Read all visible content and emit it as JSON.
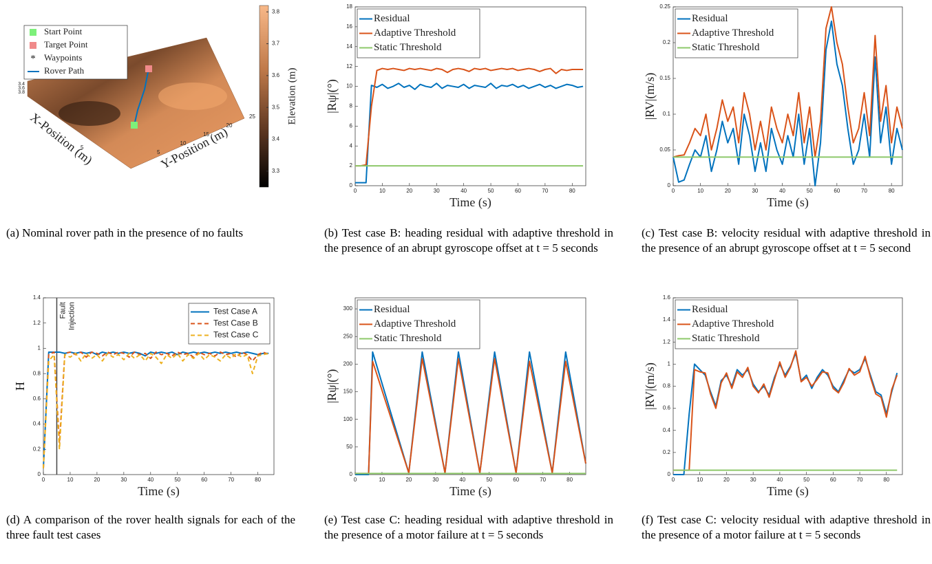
{
  "chart_data": [
    {
      "type": "surface",
      "legend": "upper left",
      "series": [
        {
          "name": "Start Point",
          "color": "#7df07a"
        },
        {
          "name": "Target Point",
          "color": "#f08a8a"
        },
        {
          "name": "Waypoints",
          "color": "#000000"
        },
        {
          "name": "Rover Path",
          "color": "#0072BD"
        }
      ],
      "xlabel": "X-Position (m)",
      "ylabel": "Y-Position (m)",
      "xticks": [
        5
      ],
      "yticks": [
        5,
        10,
        15,
        20,
        25
      ],
      "zticks": [
        3.4,
        3.6,
        3.8
      ],
      "colorbar_label": "Elevation (m)",
      "clim": [
        3.25,
        3.82
      ],
      "cticks": [
        3.3,
        3.4,
        3.5,
        3.6,
        3.7,
        3.8
      ],
      "caption": "(a) Nominal rover path in the presence of no faults"
    },
    {
      "type": "line",
      "legend": "upper left",
      "xlabel": "Time (s)",
      "ylabel": "|Rψ|(°)",
      "xlim": [
        0,
        85
      ],
      "xticks": [
        0,
        10,
        20,
        30,
        40,
        50,
        60,
        70,
        80
      ],
      "ylim": [
        0,
        18
      ],
      "yticks": [
        0,
        2,
        4,
        6,
        8,
        10,
        12,
        14,
        16,
        18
      ],
      "x": [
        0,
        2,
        4,
        6,
        8,
        10,
        12,
        14,
        16,
        18,
        20,
        22,
        24,
        26,
        28,
        30,
        32,
        34,
        36,
        38,
        40,
        42,
        44,
        46,
        48,
        50,
        52,
        54,
        56,
        58,
        60,
        62,
        64,
        66,
        68,
        70,
        72,
        74,
        76,
        78,
        80,
        82,
        84
      ],
      "series": [
        {
          "name": "Residual",
          "color": "#0072BD",
          "values": [
            0.3,
            0.3,
            0.3,
            10.1,
            9.9,
            10.2,
            9.8,
            10.0,
            10.3,
            9.9,
            10.1,
            9.7,
            10.2,
            10.0,
            9.9,
            10.3,
            9.8,
            10.1,
            10.0,
            9.9,
            10.2,
            9.8,
            10.1,
            10.0,
            9.9,
            10.3,
            9.8,
            10.1,
            10.0,
            10.2,
            9.9,
            10.1,
            9.8,
            10.0,
            10.2,
            9.9,
            10.1,
            9.8,
            10.0,
            10.2,
            10.1,
            9.9,
            10.0
          ]
        },
        {
          "name": "Adaptive Threshold",
          "color": "#D95319",
          "values": [
            2,
            2,
            2.1,
            8.0,
            11.6,
            11.8,
            11.7,
            11.8,
            11.7,
            11.6,
            11.8,
            11.7,
            11.8,
            11.7,
            11.6,
            11.8,
            11.7,
            11.4,
            11.7,
            11.8,
            11.7,
            11.5,
            11.8,
            11.7,
            11.8,
            11.6,
            11.7,
            11.8,
            11.7,
            11.8,
            11.6,
            11.7,
            11.8,
            11.7,
            11.5,
            11.7,
            11.8,
            11.3,
            11.7,
            11.6,
            11.7,
            11.7,
            11.7
          ]
        },
        {
          "name": "Static Threshold",
          "color": "#8DC86A",
          "values": [
            2,
            2,
            2,
            2,
            2,
            2,
            2,
            2,
            2,
            2,
            2,
            2,
            2,
            2,
            2,
            2,
            2,
            2,
            2,
            2,
            2,
            2,
            2,
            2,
            2,
            2,
            2,
            2,
            2,
            2,
            2,
            2,
            2,
            2,
            2,
            2,
            2,
            2,
            2,
            2,
            2,
            2,
            2
          ]
        }
      ],
      "caption": "(b) Test case B: heading residual with adaptive threshold in the presence of an abrupt gyroscope offset at t = 5 seconds"
    },
    {
      "type": "line",
      "legend": "upper left",
      "xlabel": "Time (s)",
      "ylabel": "|RV|(m/s)",
      "xlim": [
        0,
        84
      ],
      "xticks": [
        0,
        10,
        20,
        30,
        40,
        50,
        60,
        70,
        80
      ],
      "ylim": [
        0,
        0.25
      ],
      "yticks": [
        0,
        0.05,
        0.1,
        0.15,
        0.2,
        0.25
      ],
      "x": [
        0,
        2,
        4,
        6,
        8,
        10,
        12,
        14,
        16,
        18,
        20,
        22,
        24,
        26,
        28,
        30,
        32,
        34,
        36,
        38,
        40,
        42,
        44,
        46,
        48,
        50,
        52,
        54,
        56,
        58,
        60,
        62,
        64,
        66,
        68,
        70,
        72,
        74,
        76,
        78,
        80,
        82,
        84
      ],
      "series": [
        {
          "name": "Residual",
          "color": "#0072BD",
          "values": [
            0.04,
            0.005,
            0.008,
            0.03,
            0.05,
            0.04,
            0.07,
            0.02,
            0.05,
            0.09,
            0.06,
            0.08,
            0.03,
            0.1,
            0.07,
            0.02,
            0.06,
            0.02,
            0.08,
            0.05,
            0.03,
            0.07,
            0.04,
            0.1,
            0.03,
            0.08,
            0.0,
            0.06,
            0.19,
            0.23,
            0.17,
            0.14,
            0.08,
            0.03,
            0.05,
            0.1,
            0.04,
            0.18,
            0.06,
            0.11,
            0.03,
            0.08,
            0.05
          ]
        },
        {
          "name": "Adaptive Threshold",
          "color": "#D95319",
          "values": [
            0.04,
            0.042,
            0.043,
            0.06,
            0.08,
            0.07,
            0.1,
            0.05,
            0.08,
            0.12,
            0.09,
            0.11,
            0.06,
            0.13,
            0.1,
            0.05,
            0.09,
            0.05,
            0.11,
            0.08,
            0.06,
            0.1,
            0.07,
            0.13,
            0.06,
            0.11,
            0.04,
            0.09,
            0.22,
            0.25,
            0.2,
            0.17,
            0.11,
            0.06,
            0.08,
            0.13,
            0.07,
            0.21,
            0.09,
            0.14,
            0.06,
            0.11,
            0.08
          ]
        },
        {
          "name": "Static Threshold",
          "color": "#8DC86A",
          "values": [
            0.04,
            0.04,
            0.04,
            0.04,
            0.04,
            0.04,
            0.04,
            0.04,
            0.04,
            0.04,
            0.04,
            0.04,
            0.04,
            0.04,
            0.04,
            0.04,
            0.04,
            0.04,
            0.04,
            0.04,
            0.04,
            0.04,
            0.04,
            0.04,
            0.04,
            0.04,
            0.04,
            0.04,
            0.04,
            0.04,
            0.04,
            0.04,
            0.04,
            0.04,
            0.04,
            0.04,
            0.04,
            0.04,
            0.04,
            0.04,
            0.04,
            0.04,
            0.04
          ]
        }
      ],
      "caption": "(c) Test case B: velocity residual with adaptive threshold in the presence of an abrupt gyroscope offset at t = 5 second"
    },
    {
      "type": "line",
      "legend": "upper right",
      "xlabel": "Time (s)",
      "ylabel": "H",
      "xlim": [
        0,
        86
      ],
      "xticks": [
        0,
        10,
        20,
        30,
        40,
        50,
        60,
        70,
        80
      ],
      "ylim": [
        0,
        1.4
      ],
      "yticks": [
        0,
        0.2,
        0.4,
        0.6,
        0.8,
        1,
        1.2,
        1.4
      ],
      "annotation": {
        "x": 5,
        "text": [
          "Fault",
          "Injection"
        ]
      },
      "x": [
        0,
        2,
        4,
        6,
        8,
        10,
        12,
        14,
        16,
        18,
        20,
        22,
        24,
        26,
        28,
        30,
        32,
        34,
        36,
        38,
        40,
        42,
        44,
        46,
        48,
        50,
        52,
        54,
        56,
        58,
        60,
        62,
        64,
        66,
        68,
        70,
        72,
        74,
        76,
        78,
        80,
        82,
        84
      ],
      "series": [
        {
          "name": "Test Case A",
          "color": "#0072BD",
          "linestyle": "-",
          "values": [
            0.05,
            0.97,
            0.97,
            0.97,
            0.96,
            0.97,
            0.96,
            0.97,
            0.96,
            0.97,
            0.95,
            0.97,
            0.96,
            0.97,
            0.96,
            0.97,
            0.96,
            0.97,
            0.96,
            0.94,
            0.97,
            0.96,
            0.97,
            0.96,
            0.97,
            0.95,
            0.97,
            0.96,
            0.97,
            0.96,
            0.97,
            0.96,
            0.97,
            0.96,
            0.97,
            0.96,
            0.97,
            0.96,
            0.97,
            0.96,
            0.95,
            0.96,
            0.96
          ]
        },
        {
          "name": "Test Case B",
          "color": "#D95319",
          "linestyle": "--",
          "values": [
            0.05,
            0.95,
            0.97,
            0.25,
            0.96,
            0.97,
            0.95,
            0.97,
            0.93,
            0.97,
            0.96,
            0.94,
            0.97,
            0.95,
            0.97,
            0.96,
            0.93,
            0.97,
            0.95,
            0.96,
            0.92,
            0.97,
            0.95,
            0.96,
            0.94,
            0.97,
            0.95,
            0.96,
            0.93,
            0.97,
            0.95,
            0.96,
            0.94,
            0.97,
            0.95,
            0.96,
            0.93,
            0.97,
            0.95,
            0.9,
            0.95,
            0.97,
            0.95
          ]
        },
        {
          "name": "Test Case C",
          "color": "#EDB120",
          "linestyle": "--",
          "values": [
            0.05,
            0.9,
            0.95,
            0.2,
            0.95,
            0.93,
            0.96,
            0.9,
            0.96,
            0.92,
            0.95,
            0.9,
            0.96,
            0.93,
            0.95,
            0.91,
            0.96,
            0.92,
            0.95,
            0.9,
            0.96,
            0.93,
            0.88,
            0.95,
            0.92,
            0.96,
            0.9,
            0.95,
            0.92,
            0.96,
            0.91,
            0.95,
            0.93,
            0.9,
            0.95,
            0.92,
            0.96,
            0.93,
            0.95,
            0.8,
            0.94,
            0.95,
            0.96
          ]
        }
      ],
      "caption": "(d) A comparison of the rover health signals for each of the three fault test cases"
    },
    {
      "type": "line",
      "legend": "upper left",
      "xlabel": "Time (s)",
      "ylabel": "|Rψ|(°)",
      "xlim": [
        0,
        86
      ],
      "xticks": [
        0,
        10,
        20,
        30,
        40,
        50,
        60,
        70,
        80
      ],
      "ylim": [
        0,
        320
      ],
      "yticks": [
        0,
        50,
        100,
        150,
        200,
        250,
        300
      ],
      "x": [
        0,
        5,
        6.5,
        20,
        25,
        33.5,
        38.5,
        46.5,
        52,
        60,
        65,
        73.5,
        78.5,
        86
      ],
      "series": [
        {
          "name": "Residual",
          "color": "#0072BD",
          "values": [
            0,
            0,
            222,
            3,
            222,
            3,
            222,
            3,
            222,
            3,
            222,
            3,
            222,
            20
          ]
        },
        {
          "name": "Adaptive Threshold",
          "color": "#D95319",
          "values": [
            2,
            2,
            205,
            3,
            210,
            3,
            210,
            3,
            210,
            3,
            205,
            3,
            205,
            20
          ]
        },
        {
          "name": "Static Threshold",
          "color": "#8DC86A",
          "values": [
            2,
            2,
            2,
            2,
            2,
            2,
            2,
            2,
            2,
            2,
            2,
            2,
            2,
            2
          ]
        }
      ],
      "caption": "(e) Test case C: heading residual with adaptive threshold in the presence of a motor failure at t = 5 seconds"
    },
    {
      "type": "line",
      "legend": "upper left",
      "xlabel": "Time (s)",
      "ylabel": "|RV|(m/s)",
      "xlim": [
        0,
        86
      ],
      "xticks": [
        0,
        10,
        20,
        30,
        40,
        50,
        60,
        70,
        80
      ],
      "ylim": [
        0,
        1.6
      ],
      "yticks": [
        0,
        0.2,
        0.4,
        0.6,
        0.8,
        1,
        1.2,
        1.4,
        1.6
      ],
      "x": [
        0,
        2,
        4,
        6,
        8,
        10,
        12,
        14,
        16,
        18,
        20,
        22,
        24,
        26,
        28,
        30,
        32,
        34,
        36,
        38,
        40,
        42,
        44,
        46,
        48,
        50,
        52,
        54,
        56,
        58,
        60,
        62,
        64,
        66,
        68,
        70,
        72,
        74,
        76,
        78,
        80,
        82,
        84
      ],
      "series": [
        {
          "name": "Residual",
          "color": "#0072BD",
          "values": [
            0,
            0,
            0,
            0.55,
            1.0,
            0.95,
            0.9,
            0.75,
            0.62,
            0.85,
            0.9,
            0.8,
            0.95,
            0.9,
            0.95,
            0.82,
            0.75,
            0.8,
            0.72,
            0.88,
            1.0,
            0.9,
            0.98,
            1.1,
            0.85,
            0.9,
            0.78,
            0.88,
            0.95,
            0.9,
            0.8,
            0.75,
            0.85,
            0.95,
            0.92,
            0.95,
            1.05,
            0.9,
            0.75,
            0.72,
            0.55,
            0.75,
            0.92
          ]
        },
        {
          "name": "Adaptive Threshold",
          "color": "#D95319",
          "values": [
            0.04,
            0.04,
            0.04,
            0.04,
            0.95,
            0.93,
            0.92,
            0.73,
            0.6,
            0.83,
            0.92,
            0.78,
            0.93,
            0.88,
            0.97,
            0.8,
            0.74,
            0.82,
            0.7,
            0.86,
            1.02,
            0.88,
            0.97,
            1.12,
            0.84,
            0.88,
            0.8,
            0.86,
            0.93,
            0.92,
            0.78,
            0.74,
            0.83,
            0.96,
            0.9,
            0.93,
            1.07,
            0.88,
            0.73,
            0.7,
            0.52,
            0.77,
            0.9
          ]
        },
        {
          "name": "Static Threshold",
          "color": "#8DC86A",
          "values": [
            0.04,
            0.04,
            0.04,
            0.04,
            0.04,
            0.04,
            0.04,
            0.04,
            0.04,
            0.04,
            0.04,
            0.04,
            0.04,
            0.04,
            0.04,
            0.04,
            0.04,
            0.04,
            0.04,
            0.04,
            0.04,
            0.04,
            0.04,
            0.04,
            0.04,
            0.04,
            0.04,
            0.04,
            0.04,
            0.04,
            0.04,
            0.04,
            0.04,
            0.04,
            0.04,
            0.04,
            0.04,
            0.04,
            0.04,
            0.04,
            0.04,
            0.04,
            0.04
          ]
        }
      ],
      "caption": "(f) Test case C: velocity residual with adaptive threshold in the presence of a motor failure at t = 5 seconds"
    }
  ]
}
